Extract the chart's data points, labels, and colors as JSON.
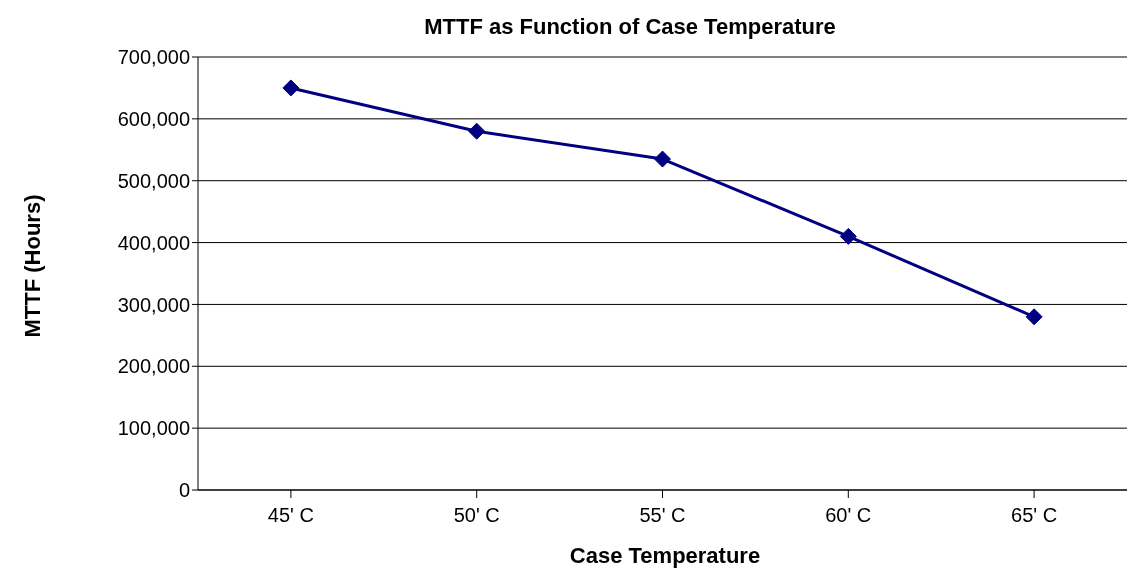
{
  "chart_data": {
    "type": "line",
    "title": "MTTF as Function of Case Temperature",
    "xlabel": "Case Temperature",
    "ylabel": "MTTF (Hours)",
    "categories": [
      "45' C",
      "50' C",
      "55' C",
      "60' C",
      "65' C"
    ],
    "series": [
      {
        "color": "#000080",
        "values": [
          650000,
          580000,
          535000,
          410000,
          280000
        ]
      }
    ],
    "ylim": [
      0,
      700000
    ],
    "yticks": [
      {
        "value": 0,
        "label": "0"
      },
      {
        "value": 100000,
        "label": "100,000"
      },
      {
        "value": 200000,
        "label": "200,000"
      },
      {
        "value": 300000,
        "label": "300,000"
      },
      {
        "value": 400000,
        "label": "400,000"
      },
      {
        "value": 500000,
        "label": "500,000"
      },
      {
        "value": 600000,
        "label": "600,000"
      },
      {
        "value": 700000,
        "label": "700,000"
      }
    ],
    "grid": "y",
    "legend": false,
    "marker": "diamond",
    "line_style": "solid"
  }
}
